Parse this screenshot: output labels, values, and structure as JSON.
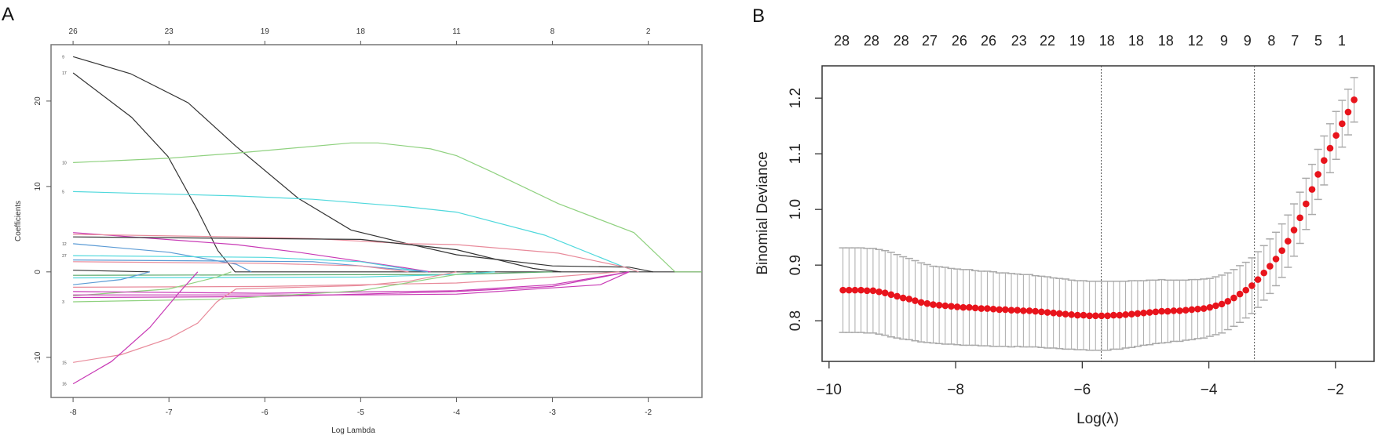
{
  "panels": {
    "a_letter": "A",
    "b_letter": "B"
  },
  "chart_data": [
    {
      "type": "line",
      "panel": "A",
      "xlabel": "Log Lambda",
      "ylabel": "Coefficients",
      "xlim": [
        -8.23,
        -1.44
      ],
      "ylim": [
        -14.7,
        26.6
      ],
      "x_ticks": [
        -8,
        -7,
        -6,
        -5,
        -4,
        -3,
        -2
      ],
      "x_tick_labels": [
        "-8",
        "-7",
        "-6",
        "-5",
        "-4",
        "-3",
        "-2"
      ],
      "y_ticks": [
        -10,
        0,
        10,
        20
      ],
      "y_tick_labels": [
        "-10",
        "0",
        "10",
        "20"
      ],
      "top_axis": {
        "at": [
          -8,
          -7,
          -6,
          -5,
          -4,
          -3,
          -2
        ],
        "labels": [
          "26",
          "23",
          "19",
          "18",
          "11",
          "8",
          "2"
        ]
      },
      "grid": false,
      "series": [
        {
          "label": "9",
          "color": "#333333",
          "points": [
            [
              -8,
              25.2
            ],
            [
              -7.4,
              23.2
            ],
            [
              -6.8,
              19.8
            ],
            [
              -6.3,
              14.7
            ],
            [
              -5.65,
              8.6
            ],
            [
              -5.1,
              4.9
            ],
            [
              -4.55,
              3.4
            ],
            [
              -4.0,
              2.0
            ],
            [
              -3.0,
              0.7
            ],
            [
              -2.2,
              0.55
            ],
            [
              -1.95,
              0
            ]
          ]
        },
        {
          "label": "17",
          "color": "#333333",
          "points": [
            [
              -8,
              23.3
            ],
            [
              -7.39,
              18.1
            ],
            [
              -7.01,
              13.5
            ],
            [
              -6.71,
              7.4
            ],
            [
              -6.49,
              2.5
            ],
            [
              -6.31,
              0
            ],
            [
              -1.44,
              0
            ]
          ]
        },
        {
          "label": "10",
          "color": "#8fd17f",
          "points": [
            [
              -8,
              12.8
            ],
            [
              -7.01,
              13.3
            ],
            [
              -6.3,
              13.9
            ],
            [
              -5.1,
              15.1
            ],
            [
              -4.82,
              15.1
            ],
            [
              -4.27,
              14.4
            ],
            [
              -4.0,
              13.6
            ],
            [
              -3.63,
              11.7
            ],
            [
              -2.94,
              8.0
            ],
            [
              -2.15,
              4.6
            ],
            [
              -1.72,
              0
            ],
            [
              -1.44,
              0
            ]
          ]
        },
        {
          "label": "5",
          "color": "#4fd8dc",
          "points": [
            [
              -8,
              9.4
            ],
            [
              -6.3,
              8.9
            ],
            [
              -5.5,
              8.5
            ],
            [
              -4.5,
              7.6
            ],
            [
              -4.0,
              7.0
            ],
            [
              -3.08,
              4.3
            ],
            [
              -2.26,
              0.6
            ],
            [
              -2.1,
              0
            ]
          ]
        },
        {
          "label": "",
          "color": "#c839b5",
          "points": [
            [
              -8,
              4.6
            ],
            [
              -6.3,
              3.2
            ],
            [
              -5.65,
              2.3
            ],
            [
              -4.55,
              0.5
            ],
            [
              -4.27,
              0
            ]
          ]
        },
        {
          "label": "",
          "color": "#e88a9a",
          "points": [
            [
              -8,
              4.4
            ],
            [
              -6.3,
              4.1
            ],
            [
              -5.5,
              3.9
            ],
            [
              -4.5,
              3.3
            ],
            [
              -4,
              3.2
            ],
            [
              -2.94,
              2.2
            ],
            [
              -2.26,
              0.6
            ],
            [
              -2.1,
              0
            ]
          ]
        },
        {
          "label": "",
          "color": "#333333",
          "points": [
            [
              -8,
              4.1
            ],
            [
              -5,
              3.8
            ],
            [
              -4,
              2.6
            ],
            [
              -3.2,
              0.4
            ],
            [
              -2.91,
              0
            ]
          ]
        },
        {
          "label": "12",
          "color": "#5b9bd5",
          "points": [
            [
              -8,
              3.3
            ],
            [
              -7,
              2.3
            ],
            [
              -6.3,
              0.9
            ],
            [
              -6.14,
              0
            ]
          ]
        },
        {
          "label": "27",
          "color": "#4fd8dc",
          "points": [
            [
              -8,
              1.9
            ],
            [
              -6,
              1.7
            ],
            [
              -5,
              1.2
            ],
            [
              -4.5,
              0.3
            ],
            [
              -4.3,
              0
            ]
          ]
        },
        {
          "label": "",
          "color": "#5b9bd5",
          "points": [
            [
              -8,
              1.4
            ],
            [
              -5.5,
              1.2
            ],
            [
              -4.8,
              0.5
            ],
            [
              -4.3,
              0
            ]
          ]
        },
        {
          "label": "",
          "color": "#e88a9a",
          "points": [
            [
              -8,
              1.2
            ],
            [
              -6,
              1.0
            ],
            [
              -5,
              0.7
            ],
            [
              -4.5,
              0
            ]
          ]
        },
        {
          "label": "",
          "color": "#333333",
          "points": [
            [
              -8,
              0.2
            ],
            [
              -7.2,
              0
            ]
          ]
        },
        {
          "label": "",
          "color": "#5aa86a",
          "points": [
            [
              -8,
              -0.4
            ],
            [
              -4.0,
              -0.3
            ],
            [
              -3.0,
              0
            ]
          ]
        },
        {
          "label": "",
          "color": "#4fd8dc",
          "points": [
            [
              -8,
              -0.7
            ],
            [
              -5,
              -0.6
            ],
            [
              -4,
              -0.3
            ],
            [
              -3.6,
              0
            ]
          ]
        },
        {
          "label": "",
          "color": "#5b9bd5",
          "points": [
            [
              -8,
              -1.5
            ],
            [
              -7.5,
              -0.9
            ],
            [
              -7.2,
              0
            ]
          ]
        },
        {
          "label": "",
          "color": "#e88a9a",
          "points": [
            [
              -8,
              -1.8
            ],
            [
              -6,
              -1.7
            ],
            [
              -4,
              -1.3
            ],
            [
              -3,
              -0.6
            ],
            [
              -2.3,
              0
            ]
          ]
        },
        {
          "label": "",
          "color": "#8fd17f",
          "points": [
            [
              -8,
              -2.8
            ],
            [
              -7,
              -2.0
            ],
            [
              -6.5,
              -0.6
            ],
            [
              -6.35,
              0
            ]
          ]
        },
        {
          "label": "",
          "color": "#c839b5",
          "points": [
            [
              -8,
              -2.3
            ],
            [
              -6,
              -2.5
            ],
            [
              -4,
              -2.2
            ],
            [
              -3,
              -1.5
            ],
            [
              -2.2,
              0
            ]
          ]
        },
        {
          "label": "",
          "color": "#c839b5",
          "points": [
            [
              -8,
              -2.7
            ],
            [
              -5,
              -2.7
            ],
            [
              -4,
              -2.6
            ],
            [
              -2.5,
              -1.5
            ],
            [
              -2.2,
              0
            ]
          ]
        },
        {
          "label": "",
          "color": "#c839b5",
          "points": [
            [
              -8,
              -3.0
            ],
            [
              -6,
              -2.9
            ],
            [
              -4,
              -2.3
            ],
            [
              -3,
              -1.7
            ],
            [
              -2.2,
              0
            ]
          ]
        },
        {
          "label": "3",
          "color": "#8fd17f",
          "points": [
            [
              -8,
              -3.5
            ],
            [
              -6.47,
              -3.2
            ],
            [
              -5,
              -2.2
            ],
            [
              -4,
              -0.3
            ],
            [
              -3.8,
              0
            ]
          ]
        },
        {
          "label": "15",
          "color": "#e88a9a",
          "points": [
            [
              -8,
              -10.6
            ],
            [
              -7.5,
              -9.7
            ],
            [
              -7,
              -7.8
            ],
            [
              -6.7,
              -6.0
            ],
            [
              -6.5,
              -3.5
            ],
            [
              -6.3,
              -2.0
            ],
            [
              -5,
              -1.6
            ],
            [
              -4.5,
              -1.1
            ],
            [
              -4,
              0
            ]
          ]
        },
        {
          "label": "16",
          "color": "#c839b5",
          "points": [
            [
              -8,
              -13.1
            ],
            [
              -7.6,
              -10.5
            ],
            [
              -7.2,
              -6.5
            ],
            [
              -6.9,
              -2.5
            ],
            [
              -6.7,
              0
            ]
          ]
        }
      ]
    },
    {
      "type": "scatter",
      "panel": "B",
      "xlabel": "Log(λ)",
      "ylabel": "Binomial Deviance",
      "xlim": [
        -10.11,
        -1.39
      ],
      "ylim": [
        0.727,
        1.258
      ],
      "x_ticks": [
        -10,
        -8,
        -6,
        -4,
        -2
      ],
      "x_tick_labels": [
        "−10",
        "−8",
        "−6",
        "−4",
        "−2"
      ],
      "y_ticks": [
        0.8,
        0.9,
        1.0,
        1.1,
        1.2
      ],
      "y_tick_labels": [
        "0.8",
        "0.9",
        "1.0",
        "1.1",
        "1.2"
      ],
      "top_axis": {
        "at": [
          -9.8,
          -9.33,
          -8.86,
          -8.41,
          -7.94,
          -7.48,
          -7.0,
          -6.55,
          -6.08,
          -5.61,
          -5.15,
          -4.68,
          -4.21,
          -3.76,
          -3.39,
          -3.01,
          -2.64,
          -2.27,
          -1.9
        ],
        "labels": [
          "28",
          "28",
          "28",
          "27",
          "26",
          "26",
          "23",
          "22",
          "19",
          "18",
          "18",
          "18",
          "12",
          "9",
          "9",
          "8",
          "7",
          "5",
          "1"
        ]
      },
      "vlines": [
        -5.7,
        -3.28
      ],
      "point_color": "#e8141c",
      "errorbar_color": "#aaaaaa",
      "grid": false,
      "x_start": -9.78,
      "x_step": 0.095,
      "mean": [
        0.855,
        0.855,
        0.855,
        0.855,
        0.854,
        0.854,
        0.852,
        0.85,
        0.847,
        0.844,
        0.841,
        0.839,
        0.836,
        0.833,
        0.831,
        0.829,
        0.828,
        0.827,
        0.826,
        0.825,
        0.824,
        0.824,
        0.823,
        0.822,
        0.822,
        0.821,
        0.82,
        0.82,
        0.819,
        0.819,
        0.818,
        0.818,
        0.817,
        0.816,
        0.815,
        0.814,
        0.813,
        0.812,
        0.811,
        0.81,
        0.81,
        0.809,
        0.809,
        0.809,
        0.809,
        0.81,
        0.81,
        0.811,
        0.812,
        0.813,
        0.814,
        0.815,
        0.816,
        0.817,
        0.817,
        0.818,
        0.818,
        0.819,
        0.82,
        0.821,
        0.822,
        0.824,
        0.827,
        0.83,
        0.835,
        0.841,
        0.848,
        0.855,
        0.863,
        0.874,
        0.886,
        0.898,
        0.911,
        0.926,
        0.943,
        0.963,
        0.985,
        1.01,
        1.036,
        1.063,
        1.088,
        1.11,
        1.133,
        1.154,
        1.175,
        1.197
      ],
      "se": [
        0.076,
        0.076,
        0.076,
        0.076,
        0.076,
        0.076,
        0.076,
        0.076,
        0.076,
        0.075,
        0.074,
        0.073,
        0.072,
        0.071,
        0.07,
        0.069,
        0.069,
        0.069,
        0.068,
        0.068,
        0.068,
        0.068,
        0.067,
        0.067,
        0.067,
        0.067,
        0.066,
        0.066,
        0.066,
        0.065,
        0.065,
        0.065,
        0.064,
        0.064,
        0.064,
        0.063,
        0.063,
        0.063,
        0.062,
        0.062,
        0.062,
        0.062,
        0.062,
        0.062,
        0.062,
        0.061,
        0.061,
        0.06,
        0.06,
        0.059,
        0.058,
        0.058,
        0.057,
        0.057,
        0.056,
        0.055,
        0.055,
        0.054,
        0.054,
        0.053,
        0.053,
        0.052,
        0.052,
        0.052,
        0.051,
        0.051,
        0.051,
        0.05,
        0.05,
        0.05,
        0.049,
        0.049,
        0.048,
        0.048,
        0.047,
        0.047,
        0.046,
        0.046,
        0.045,
        0.045,
        0.044,
        0.044,
        0.043,
        0.042,
        0.041,
        0.04
      ]
    }
  ]
}
